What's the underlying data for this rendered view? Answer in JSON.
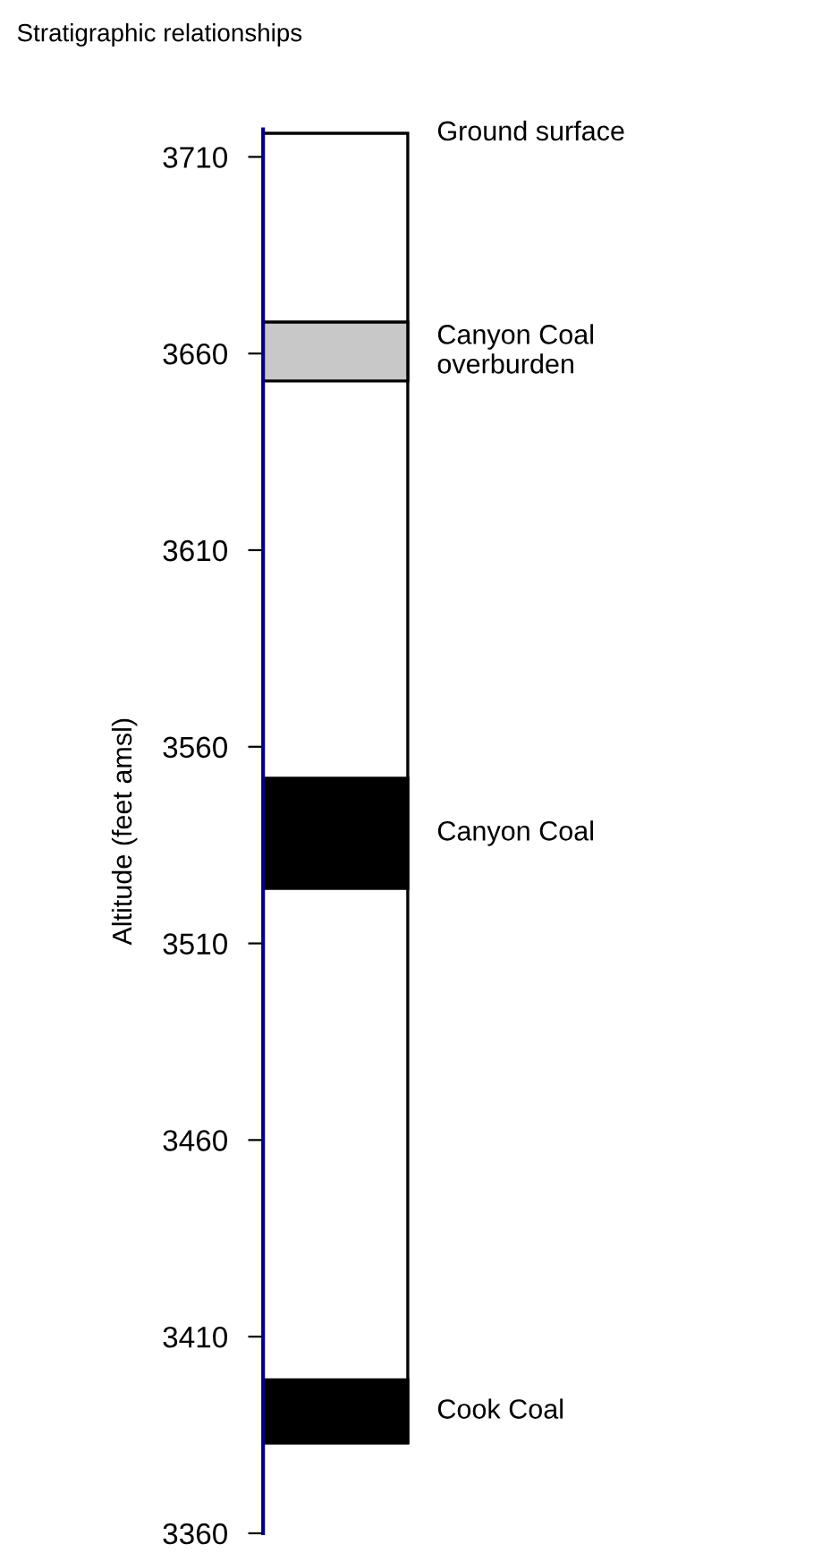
{
  "chart_data": {
    "type": "bar",
    "title": "Stratigraphic relationships",
    "ylabel": "Altitude (feet amsl)",
    "categories": [
      null
    ],
    "series": [
      {
        "color": "#ffffff",
        "values": [
          333
        ],
        "base": [
          3383
        ]
      },
      {
        "color": "#c8c8c8",
        "values": [
          15
        ],
        "base": [
          3653
        ]
      },
      {
        "color": "#000000",
        "values": [
          28
        ],
        "base": [
          3524
        ]
      },
      {
        "color": "#000000",
        "values": [
          16
        ],
        "base": [
          3383
        ]
      }
    ],
    "ylim": [
      3360,
      3717
    ],
    "yticks": [
      3360,
      3410,
      3460,
      3510,
      3560,
      3610,
      3660,
      3710
    ],
    "annotations": [
      "Ground surface",
      "Canyon Coal\noverburden",
      "Canyon Coal",
      "Cook Coal"
    ],
    "grid": false,
    "legend": false
  }
}
